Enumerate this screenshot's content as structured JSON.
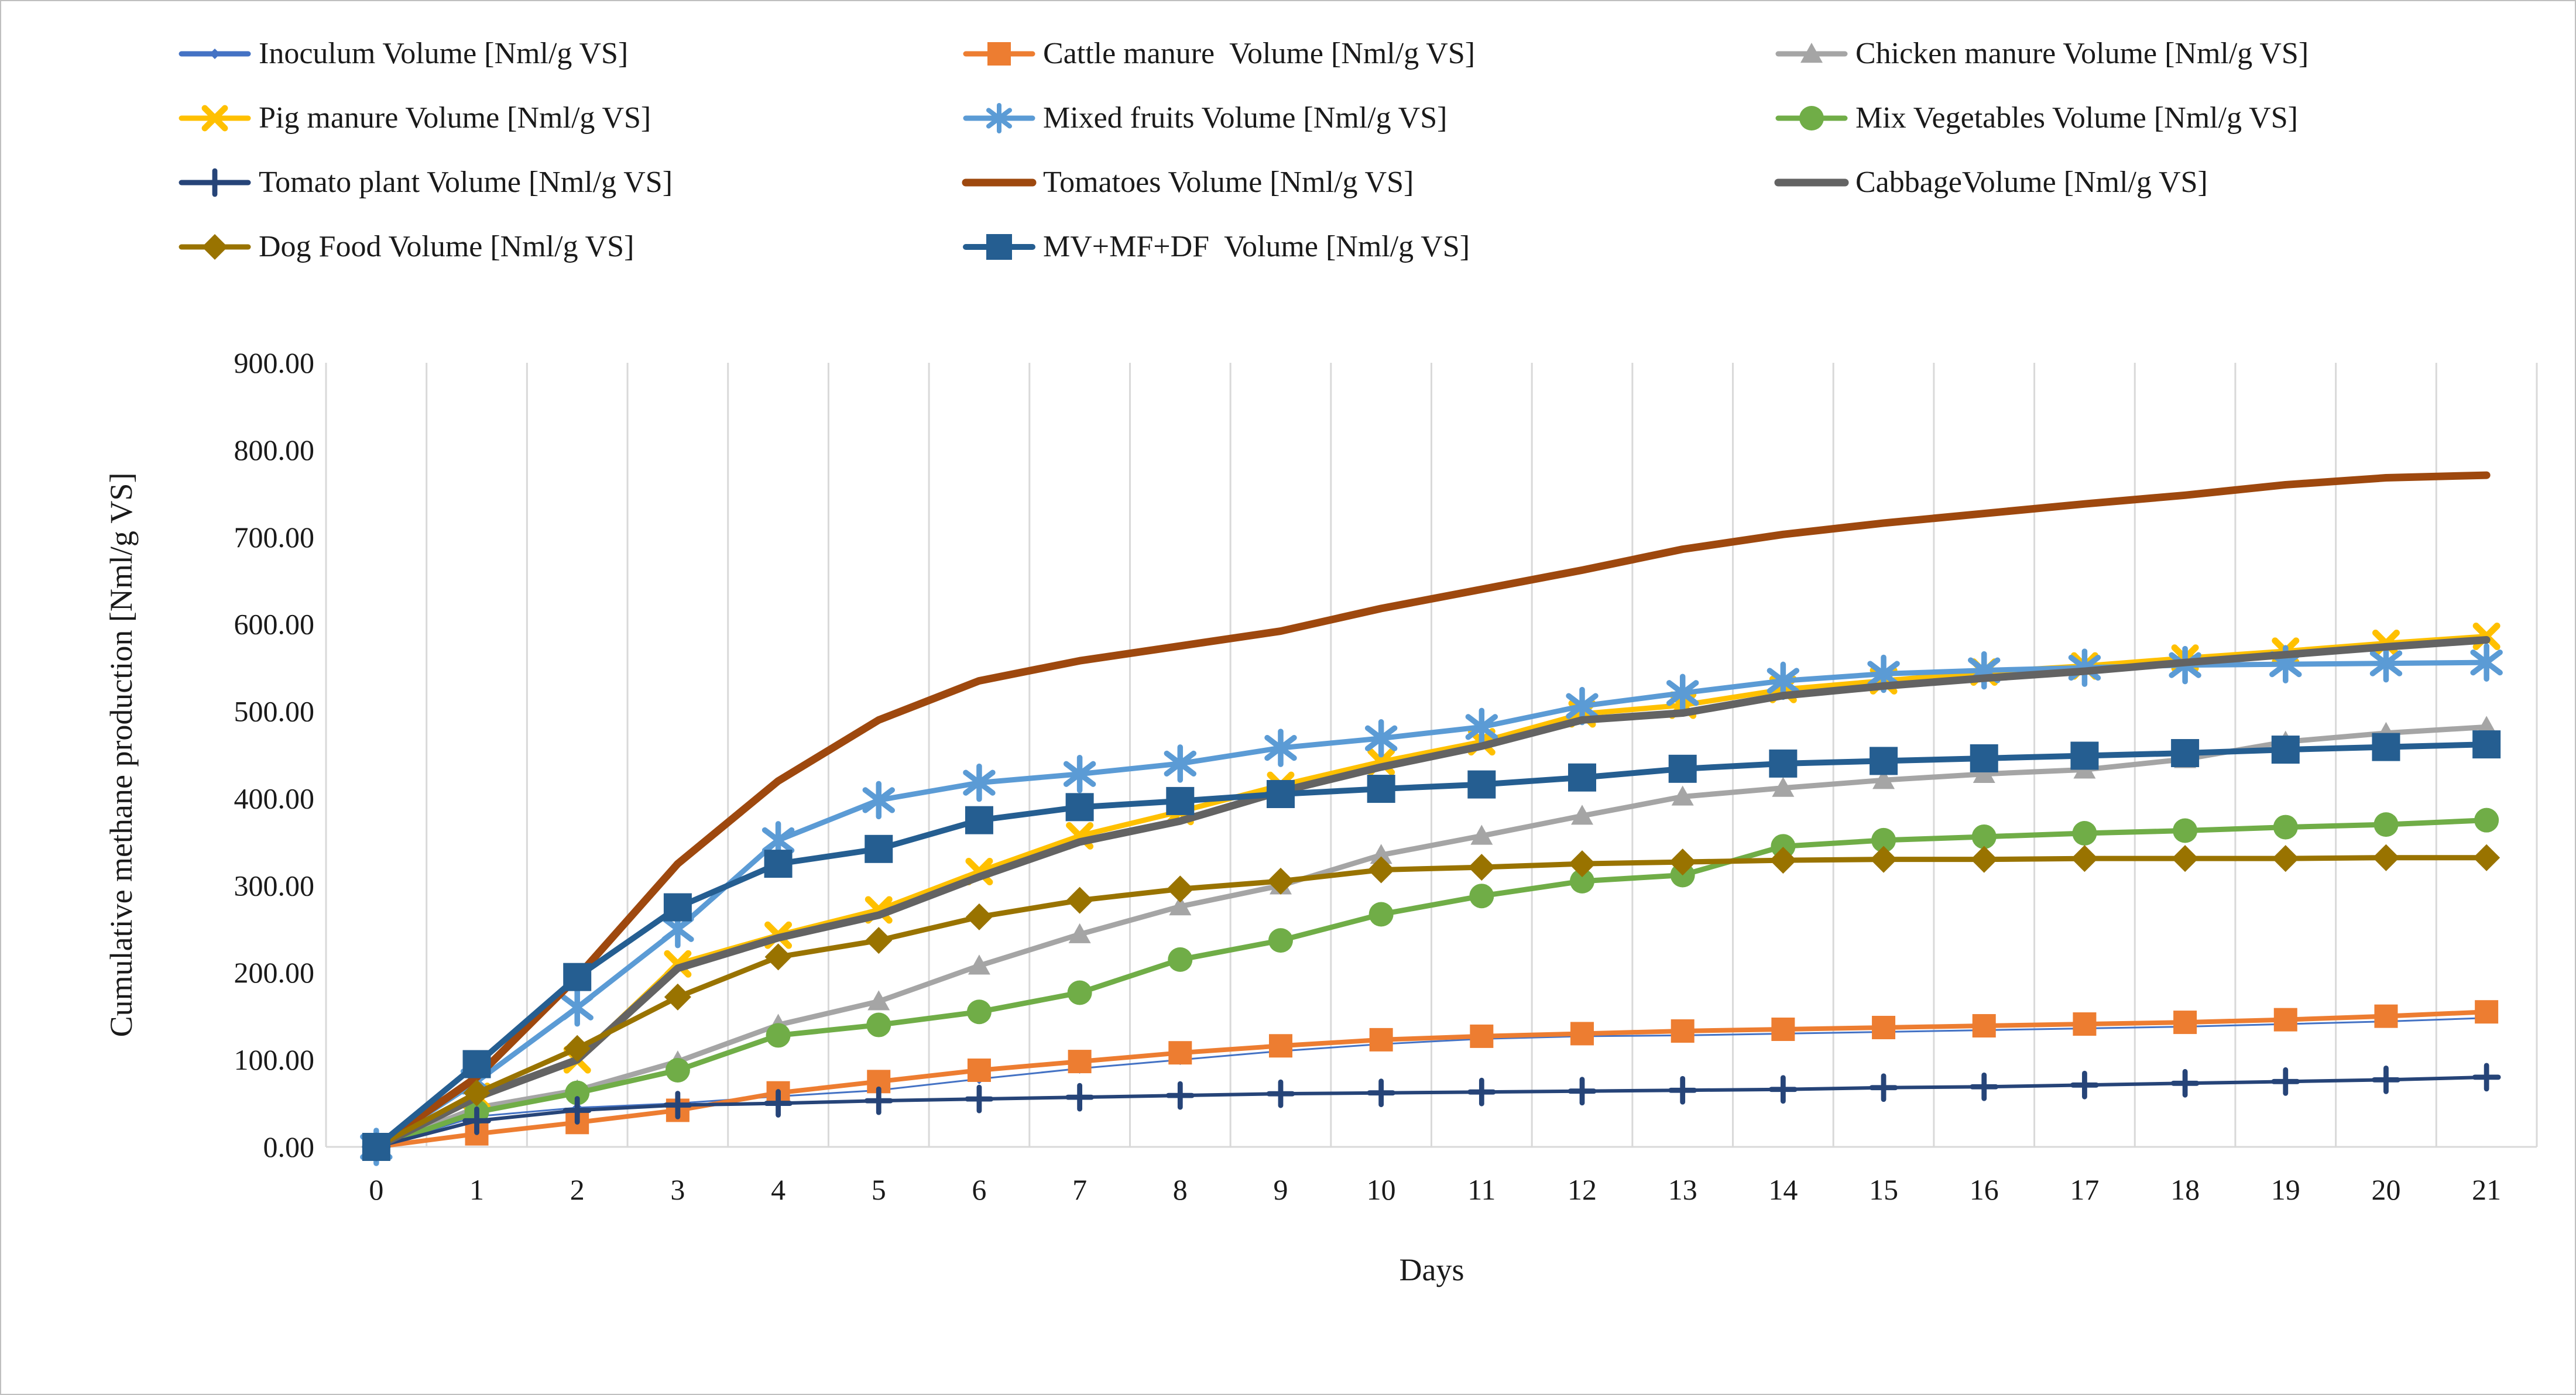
{
  "figure": {
    "background": "#FFFFFF",
    "border_color": "#BFBFBF"
  },
  "chart_data": {
    "type": "line",
    "title": "",
    "xlabel": "Days",
    "ylabel": "Cumulative methane production [Nml/g VS]",
    "x": [
      0,
      1,
      2,
      3,
      4,
      5,
      6,
      7,
      8,
      9,
      10,
      11,
      12,
      13,
      14,
      15,
      16,
      17,
      18,
      19,
      20,
      21
    ],
    "xtick_labels": [
      "0",
      "1",
      "2",
      "3",
      "4",
      "5",
      "6",
      "7",
      "8",
      "9",
      "10",
      "11",
      "12",
      "13",
      "14",
      "15",
      "16",
      "17",
      "18",
      "19",
      "20",
      "21"
    ],
    "ylim": [
      0,
      900
    ],
    "ytick_values": [
      0,
      100,
      200,
      300,
      400,
      500,
      600,
      700,
      800,
      900
    ],
    "ytick_labels": [
      "0.00",
      "100.00",
      "200.00",
      "300.00",
      "400.00",
      "500.00",
      "600.00",
      "700.00",
      "800.00",
      "900.00"
    ],
    "grid": "vertical-between-categories",
    "legend_position": "top-left-3-columns",
    "axis_color": "#D9D9D9",
    "text_color": "#1A1A1A",
    "series": [
      {
        "name": "Inoculum Volume [Nml/g VS]",
        "color": "#4472C4",
        "marker": "diamond",
        "marker_size": 18,
        "line_width": 3,
        "values": [
          0,
          35,
          45,
          50,
          58,
          65,
          78,
          90,
          100,
          110,
          118,
          124,
          127,
          128,
          130,
          132,
          134,
          136,
          138,
          141,
          144,
          148
        ]
      },
      {
        "name": "Cattle manure  Volume [Nml/g VS]",
        "color": "#ED7D31",
        "marker": "square",
        "marker_size": 40,
        "line_width": 8,
        "values": [
          0,
          15,
          28,
          42,
          62,
          75,
          88,
          98,
          108,
          116,
          123,
          127,
          130,
          133,
          135,
          137,
          139,
          141,
          143,
          146,
          150,
          155
        ]
      },
      {
        "name": "Chicken manure Volume [Nml/g VS]",
        "color": "#A5A5A5",
        "marker": "triangle",
        "marker_size": 38,
        "line_width": 9,
        "values": [
          0,
          45,
          65,
          98,
          140,
          167,
          208,
          244,
          276,
          300,
          335,
          357,
          380,
          402,
          412,
          421,
          428,
          433,
          445,
          465,
          475,
          482
        ]
      },
      {
        "name": "Pig manure Volume [Nml/g VS]",
        "color": "#FFC000",
        "marker": "x",
        "marker_size": 46,
        "line_width": 9,
        "values": [
          0,
          58,
          100,
          210,
          243,
          272,
          316,
          357,
          385,
          415,
          442,
          465,
          497,
          507,
          525,
          535,
          545,
          552,
          561,
          569,
          578,
          586
        ]
      },
      {
        "name": "Mixed fruits Volume [Nml/g VS]",
        "color": "#5B9BD5",
        "marker": "asterisk",
        "marker_size": 56,
        "line_width": 9,
        "values": [
          0,
          75,
          160,
          250,
          352,
          398,
          418,
          428,
          440,
          458,
          469,
          482,
          506,
          521,
          535,
          543,
          547,
          550,
          553,
          554,
          555,
          556
        ]
      },
      {
        "name": "Mix Vegetables Volume [Nml/g VS]",
        "color": "#70AD47",
        "marker": "circle",
        "marker_size": 42,
        "line_width": 9,
        "values": [
          0,
          40,
          62,
          88,
          128,
          140,
          155,
          177,
          215,
          237,
          267,
          288,
          305,
          312,
          345,
          352,
          356,
          360,
          363,
          367,
          370,
          375
        ]
      },
      {
        "name": "Tomato plant Volume [Nml/g VS]",
        "color": "#264478",
        "marker": "plus",
        "marker_size": 40,
        "line_width": 6,
        "values": [
          0,
          30,
          42,
          48,
          50,
          53,
          55,
          57,
          59,
          61,
          62,
          63,
          64,
          65,
          66,
          68,
          69,
          71,
          73,
          75,
          77,
          80
        ]
      },
      {
        "name": "Tomatoes Volume [Nml/g VS]",
        "color": "#9E480E",
        "marker": "none",
        "marker_size": 0,
        "line_width": 13,
        "values": [
          0,
          80,
          195,
          325,
          420,
          490,
          535,
          558,
          575,
          592,
          618,
          640,
          662,
          686,
          703,
          716,
          727,
          738,
          748,
          760,
          768,
          771
        ]
      },
      {
        "name": "CabbageVolume [Nml/g VS]",
        "color": "#636363",
        "marker": "none",
        "marker_size": 0,
        "line_width": 13,
        "values": [
          0,
          57,
          100,
          205,
          240,
          266,
          310,
          350,
          374,
          408,
          436,
          460,
          490,
          498,
          518,
          529,
          538,
          546,
          556,
          565,
          574,
          582
        ]
      },
      {
        "name": "Dog Food Volume [Nml/g VS]",
        "color": "#997300",
        "marker": "diamond",
        "marker_size": 46,
        "line_width": 9,
        "values": [
          0,
          62,
          113,
          172,
          218,
          237,
          264,
          283,
          296,
          305,
          318,
          321,
          325,
          327,
          329,
          330,
          330,
          331,
          331,
          331,
          332,
          332
        ]
      },
      {
        "name": "MV+MF+DF  Volume [Nml/g VS]",
        "color": "#255E91",
        "marker": "square",
        "marker_size": 48,
        "line_width": 10,
        "values": [
          0,
          95,
          195,
          275,
          325,
          342,
          375,
          390,
          397,
          405,
          411,
          416,
          424,
          434,
          440,
          443,
          446,
          449,
          452,
          456,
          459,
          462
        ]
      }
    ]
  }
}
